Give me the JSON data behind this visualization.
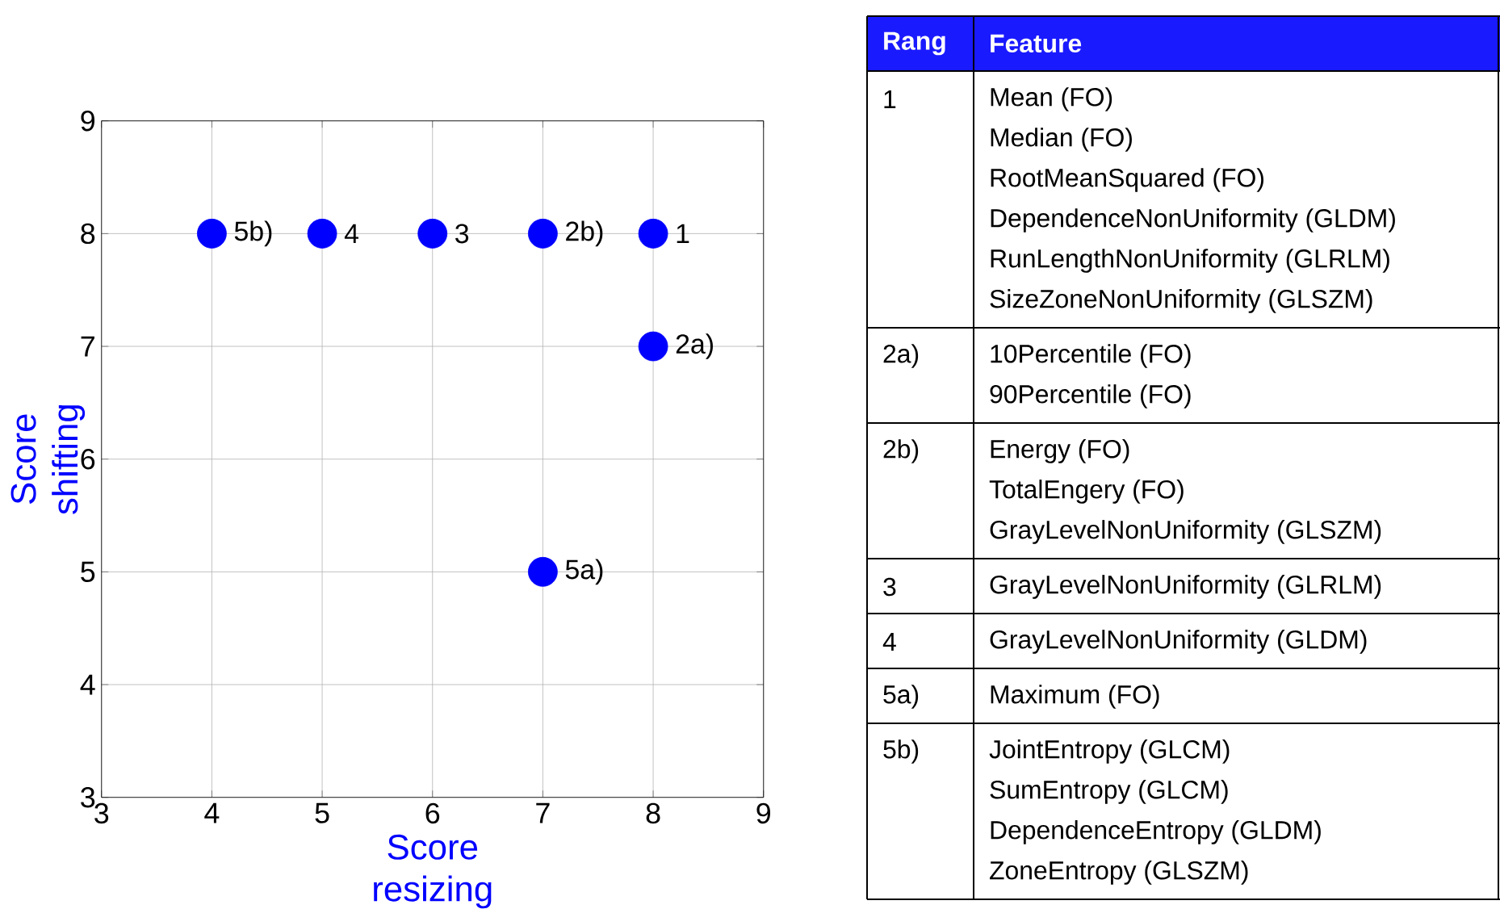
{
  "chart_data": [
    {
      "type": "scatter",
      "x": [
        4,
        5,
        6,
        7,
        8,
        8,
        7
      ],
      "values": [
        8,
        8,
        8,
        8,
        8,
        7,
        5
      ],
      "color": "#0000ff",
      "marker": "circle",
      "grid": true,
      "xlim": [
        3,
        9
      ],
      "ylim": [
        3,
        9
      ],
      "xticks": [
        3,
        4,
        5,
        6,
        7,
        8,
        9
      ],
      "yticks": [
        3,
        4,
        5,
        6,
        7,
        8,
        9
      ],
      "xlabel": "Score resizing",
      "ylabel": "Score shifting",
      "annotations": [
        {
          "text": "5b)",
          "x": 4,
          "y": 8
        },
        {
          "text": "4",
          "x": 5,
          "y": 8
        },
        {
          "text": "3",
          "x": 6,
          "y": 8
        },
        {
          "text": "2b)",
          "x": 7,
          "y": 8
        },
        {
          "text": "1",
          "x": 8,
          "y": 8
        },
        {
          "text": "2a)",
          "x": 8,
          "y": 7
        },
        {
          "text": "5a)",
          "x": 7,
          "y": 5
        }
      ]
    },
    {
      "type": "other",
      "color": "#1a1aff",
      "categories": [
        "Rang",
        "Feature"
      ],
      "y_categories": [
        "1",
        "2a)",
        "2b)",
        "3",
        "4",
        "5a)",
        "5b)"
      ],
      "cell_labels": [
        [
          "Mean (FO)",
          "Median (FO)",
          "RootMeanSquared (FO)",
          "DependenceNonUniformity (GLDM)",
          "RunLengthNonUniformity (GLRLM)",
          "SizeZoneNonUniformity (GLSZM)"
        ],
        [
          "10Percentile (FO)",
          "90Percentile (FO)"
        ],
        [
          "Energy (FO)",
          "TotalEngery (FO)",
          "GrayLevelNonUniformity (GLSZM)"
        ],
        [
          "GrayLevelNonUniformity (GLRLM)"
        ],
        [
          "GrayLevelNonUniformity (GLDM)"
        ],
        [
          "Maximum (FO)"
        ],
        [
          "JointEntropy (GLCM)",
          "SumEntropy (GLCM)",
          "DependenceEntropy (GLDM)",
          "ZoneEntropy (GLSZM)"
        ]
      ]
    }
  ]
}
